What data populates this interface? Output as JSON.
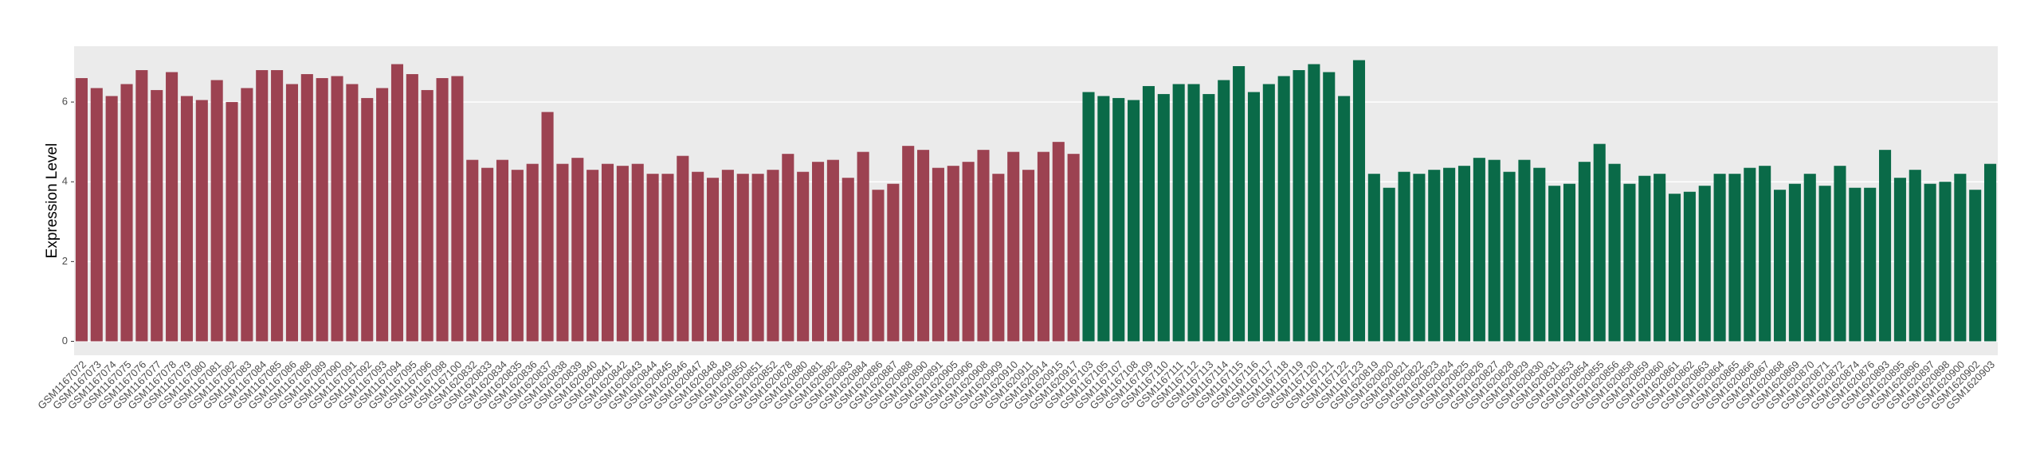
{
  "chart_data": {
    "type": "bar",
    "y_label": "Expression Level",
    "categories": [
      "GSM1167072",
      "GSM1167073",
      "GSM1167074",
      "GSM1167075",
      "GSM1167076",
      "GSM1167077",
      "GSM1167078",
      "GSM1167079",
      "GSM1167080",
      "GSM1167081",
      "GSM1167082",
      "GSM1167083",
      "GSM1167084",
      "GSM1167085",
      "GSM1167086",
      "GSM1167088",
      "GSM1167089",
      "GSM1167090",
      "GSM1167091",
      "GSM1167092",
      "GSM1167093",
      "GSM1167094",
      "GSM1167095",
      "GSM1167096",
      "GSM1167098",
      "GSM1167100",
      "GSM1620832",
      "GSM1620833",
      "GSM1620834",
      "GSM1620835",
      "GSM1620836",
      "GSM1620837",
      "GSM1620838",
      "GSM1620839",
      "GSM1620840",
      "GSM1620841",
      "GSM1620842",
      "GSM1620843",
      "GSM1620844",
      "GSM1620845",
      "GSM1620846",
      "GSM1620847",
      "GSM1620848",
      "GSM1620849",
      "GSM1620850",
      "GSM1620851",
      "GSM1620852",
      "GSM1620878",
      "GSM1620880",
      "GSM1620881",
      "GSM1620882",
      "GSM1620883",
      "GSM1620884",
      "GSM1620886",
      "GSM1620887",
      "GSM1620888",
      "GSM1620890",
      "GSM1620891",
      "GSM1620905",
      "GSM1620906",
      "GSM1620908",
      "GSM1620909",
      "GSM1620910",
      "GSM1620911",
      "GSM1620914",
      "GSM1620915",
      "GSM1620917",
      "GSM1167103",
      "GSM1167105",
      "GSM1167107",
      "GSM1167108",
      "GSM1167109",
      "GSM1167110",
      "GSM1167111",
      "GSM1167112",
      "GSM1167113",
      "GSM1167114",
      "GSM1167115",
      "GSM1167116",
      "GSM1167117",
      "GSM1167118",
      "GSM1167119",
      "GSM1167120",
      "GSM1167121",
      "GSM1167122",
      "GSM1167123",
      "GSM1620819",
      "GSM1620820",
      "GSM1620821",
      "GSM1620822",
      "GSM1620823",
      "GSM1620824",
      "GSM1620825",
      "GSM1620826",
      "GSM1620827",
      "GSM1620828",
      "GSM1620829",
      "GSM1620830",
      "GSM1620831",
      "GSM1620853",
      "GSM1620854",
      "GSM1620855",
      "GSM1620856",
      "GSM1620858",
      "GSM1620859",
      "GSM1620860",
      "GSM1620861",
      "GSM1620862",
      "GSM1620863",
      "GSM1620864",
      "GSM1620865",
      "GSM1620866",
      "GSM1620867",
      "GSM1620868",
      "GSM1620869",
      "GSM1620870",
      "GSM1620871",
      "GSM1620872",
      "GSM1620874",
      "GSM1620876",
      "GSM1620893",
      "GSM1620895",
      "GSM1620896",
      "GSM1620897",
      "GSM1620898",
      "GSM1620900",
      "GSM1620902",
      "GSM1620903"
    ],
    "values": [
      6.6,
      6.35,
      6.15,
      6.45,
      6.8,
      6.3,
      6.75,
      6.15,
      6.05,
      6.55,
      6.0,
      6.35,
      6.8,
      6.8,
      6.45,
      6.7,
      6.6,
      6.65,
      6.45,
      6.1,
      6.35,
      6.95,
      6.7,
      6.3,
      6.6,
      6.65,
      4.55,
      4.35,
      4.55,
      4.3,
      4.45,
      5.75,
      4.45,
      4.6,
      4.3,
      4.45,
      4.4,
      4.45,
      4.2,
      4.2,
      4.65,
      4.25,
      4.1,
      4.3,
      4.2,
      4.2,
      4.3,
      4.7,
      4.25,
      4.5,
      4.55,
      4.1,
      4.75,
      3.8,
      3.95,
      4.9,
      4.8,
      4.35,
      4.4,
      4.5,
      4.8,
      4.2,
      4.75,
      4.3,
      4.75,
      5.0,
      4.7,
      6.25,
      6.15,
      6.1,
      6.05,
      6.4,
      6.2,
      6.45,
      6.45,
      6.2,
      6.55,
      6.9,
      6.25,
      6.45,
      6.65,
      6.8,
      6.95,
      6.75,
      6.15,
      7.05,
      4.2,
      3.85,
      4.25,
      4.2,
      4.3,
      4.35,
      4.4,
      4.6,
      4.55,
      4.25,
      4.55,
      4.35,
      3.9,
      3.95,
      4.5,
      4.95,
      4.45,
      3.95,
      4.15,
      4.2,
      3.7,
      3.75,
      3.9,
      4.2,
      4.2,
      4.35,
      4.4,
      3.8,
      3.95,
      4.2,
      3.9,
      4.4,
      3.85,
      3.85,
      4.8,
      4.1,
      4.3,
      3.95,
      4.0,
      4.2,
      3.8,
      4.45
    ],
    "colors": [
      "#9c4251",
      "#9c4251",
      "#9c4251",
      "#9c4251",
      "#9c4251",
      "#9c4251",
      "#9c4251",
      "#9c4251",
      "#9c4251",
      "#9c4251",
      "#9c4251",
      "#9c4251",
      "#9c4251",
      "#9c4251",
      "#9c4251",
      "#9c4251",
      "#9c4251",
      "#9c4251",
      "#9c4251",
      "#9c4251",
      "#9c4251",
      "#9c4251",
      "#9c4251",
      "#9c4251",
      "#9c4251",
      "#9c4251",
      "#9c4251",
      "#9c4251",
      "#9c4251",
      "#9c4251",
      "#9c4251",
      "#9c4251",
      "#9c4251",
      "#9c4251",
      "#9c4251",
      "#9c4251",
      "#9c4251",
      "#9c4251",
      "#9c4251",
      "#9c4251",
      "#9c4251",
      "#9c4251",
      "#9c4251",
      "#9c4251",
      "#9c4251",
      "#9c4251",
      "#9c4251",
      "#9c4251",
      "#9c4251",
      "#9c4251",
      "#9c4251",
      "#9c4251",
      "#9c4251",
      "#9c4251",
      "#9c4251",
      "#9c4251",
      "#9c4251",
      "#9c4251",
      "#9c4251",
      "#9c4251",
      "#9c4251",
      "#9c4251",
      "#9c4251",
      "#9c4251",
      "#9c4251",
      "#9c4251",
      "#9c4251",
      "#0a6a48",
      "#0a6a48",
      "#0a6a48",
      "#0a6a48",
      "#0a6a48",
      "#0a6a48",
      "#0a6a48",
      "#0a6a48",
      "#0a6a48",
      "#0a6a48",
      "#0a6a48",
      "#0a6a48",
      "#0a6a48",
      "#0a6a48",
      "#0a6a48",
      "#0a6a48",
      "#0a6a48",
      "#0a6a48",
      "#0a6a48",
      "#0a6a48",
      "#0a6a48",
      "#0a6a48",
      "#0a6a48",
      "#0a6a48",
      "#0a6a48",
      "#0a6a48",
      "#0a6a48",
      "#0a6a48",
      "#0a6a48",
      "#0a6a48",
      "#0a6a48",
      "#0a6a48",
      "#0a6a48",
      "#0a6a48",
      "#0a6a48",
      "#0a6a48",
      "#0a6a48",
      "#0a6a48",
      "#0a6a48",
      "#0a6a48",
      "#0a6a48",
      "#0a6a48",
      "#0a6a48",
      "#0a6a48",
      "#0a6a48",
      "#0a6a48",
      "#0a6a48",
      "#0a6a48",
      "#0a6a48",
      "#0a6a48",
      "#0a6a48",
      "#0a6a48",
      "#0a6a48",
      "#0a6a48",
      "#0a6a48",
      "#0a6a48",
      "#0a6a48",
      "#0a6a48",
      "#0a6a48",
      "#0a6a48",
      "#0a6a48"
    ],
    "ylim": [
      -0.35,
      7.4
    ],
    "yticks": [
      0,
      2,
      4,
      6
    ],
    "grid": true
  }
}
